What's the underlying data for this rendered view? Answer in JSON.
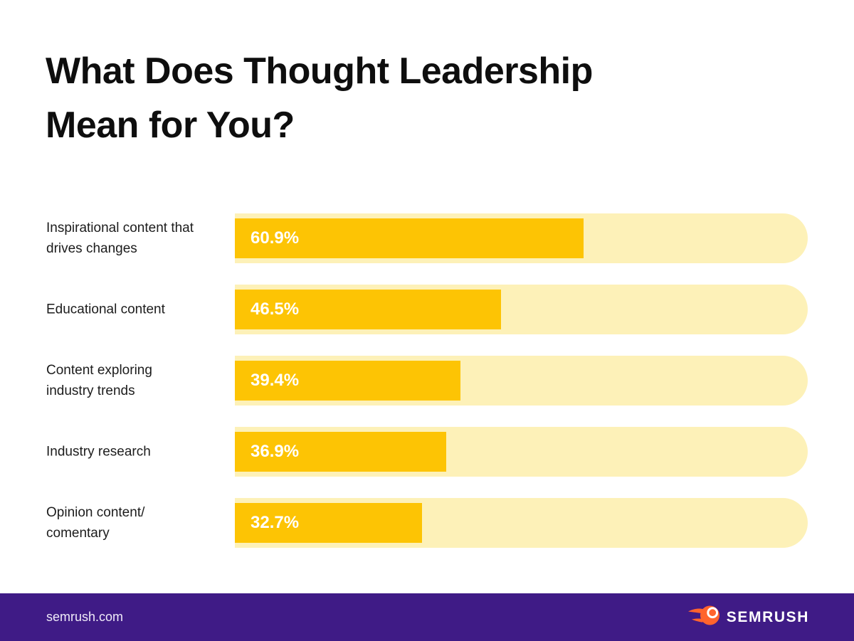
{
  "title": {
    "line1": "What Does Thought Leadership",
    "line2": "Mean for You?"
  },
  "chart_data": {
    "type": "bar",
    "orientation": "horizontal",
    "title": "What Does Thought Leadership Mean for You?",
    "categories": [
      "Inspirational content that drives changes",
      "Educational content",
      "Content exploring industry trends",
      "Industry research",
      "Opinion content/ comentary"
    ],
    "values": [
      60.9,
      46.5,
      39.4,
      36.9,
      32.7
    ],
    "value_labels": [
      "60.9%",
      "46.5%",
      "39.4%",
      "36.9%",
      "32.7%"
    ],
    "xlim": [
      0,
      100
    ],
    "unit": "%",
    "grid": false,
    "legend": false,
    "bar_color": "#FDC404",
    "track_color": "#FDF1B8",
    "value_label_color": "#FFFFFF"
  },
  "footer": {
    "site": "semrush.com",
    "brand": "SEMRUSH",
    "background": "#3F1B86",
    "logo_orange": "#FF642D"
  },
  "colors": {
    "background": "#FFFFFF",
    "title": "#0E0E0E",
    "category_label": "#1C1C1C"
  }
}
